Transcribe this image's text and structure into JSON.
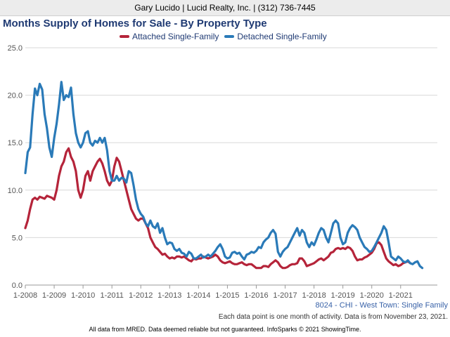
{
  "header": {
    "text": "Gary Lucido | Lucid Realty, Inc. | (312) 736-7445"
  },
  "subtitle": "8024 - CHI - West Town: Single Family",
  "note": "Each data point is one month of activity. Data is from November 23, 2021.",
  "footer": "All data from MRED. Data deemed reliable but not guaranteed. InfoSparks © 2021 ShowingTime.",
  "colors": {
    "attached": "#b5243a",
    "detached": "#2a7ab8",
    "title": "#1f3a73",
    "grid": "#d8d8d8"
  },
  "chart_data": {
    "type": "line",
    "title": "Months Supply of Homes for Sale - By Property Type",
    "xlabel": "",
    "ylabel": "",
    "ylim": [
      0,
      25
    ],
    "yticks": [
      "0.0",
      "5.0",
      "10.0",
      "15.0",
      "20.0",
      "25.0"
    ],
    "xticks": [
      "1-2008",
      "1-2009",
      "1-2010",
      "1-2011",
      "1-2012",
      "1-2013",
      "1-2014",
      "1-2015",
      "1-2016",
      "1-2017",
      "1-2018",
      "1-2019",
      "1-2020",
      "1-2021"
    ],
    "x_start": "1-2008",
    "x_end": "10-2021",
    "grid": "horizontal",
    "legend_position": "top",
    "series": [
      {
        "name": "Attached Single-Family",
        "values": [
          6.0,
          6.8,
          8.0,
          9.0,
          9.2,
          9.0,
          9.3,
          9.2,
          9.1,
          9.4,
          9.3,
          9.2,
          9.0,
          10.0,
          11.5,
          12.5,
          13.0,
          14.0,
          14.4,
          13.5,
          13.0,
          12.0,
          10.0,
          9.2,
          10.0,
          11.5,
          12.0,
          11.0,
          12.0,
          12.5,
          13.0,
          13.3,
          12.8,
          12.0,
          11.0,
          10.5,
          11.0,
          12.5,
          13.4,
          13.0,
          12.0,
          11.0,
          10.0,
          9.0,
          8.0,
          7.5,
          7.0,
          6.8,
          7.0,
          7.0,
          6.5,
          6.0,
          5.0,
          4.5,
          4.0,
          3.8,
          3.5,
          3.2,
          3.3,
          3.0,
          2.8,
          2.9,
          2.8,
          3.0,
          3.0,
          2.9,
          3.0,
          2.8,
          2.6,
          2.5,
          2.8,
          2.7,
          2.8,
          2.8,
          3.0,
          2.9,
          2.8,
          2.9,
          3.0,
          3.2,
          3.0,
          2.6,
          2.4,
          2.3,
          2.4,
          2.5,
          2.3,
          2.2,
          2.2,
          2.3,
          2.4,
          2.2,
          2.1,
          2.2,
          2.2,
          2.0,
          1.8,
          1.8,
          1.8,
          2.0,
          2.0,
          1.9,
          2.2,
          2.4,
          2.6,
          2.4,
          2.0,
          1.8,
          1.8,
          1.9,
          2.1,
          2.2,
          2.2,
          2.3,
          2.8,
          2.8,
          2.5,
          2.0,
          2.1,
          2.2,
          2.3,
          2.5,
          2.7,
          2.8,
          2.6,
          2.8,
          3.0,
          3.4,
          3.5,
          3.8,
          3.9,
          3.8,
          3.9,
          3.8,
          4.0,
          3.9,
          3.6,
          3.0,
          2.6,
          2.7,
          2.7,
          2.9,
          3.0,
          3.2,
          3.4,
          3.8,
          4.4,
          4.5,
          4.2,
          3.5,
          2.8,
          2.5,
          2.3,
          2.1,
          2.2,
          2.0,
          2.1,
          2.3,
          2.4,
          2.5,
          2.3
        ]
      },
      {
        "name": "Detached Single-Family",
        "values": [
          11.8,
          14.0,
          14.5,
          18.0,
          20.7,
          20.0,
          21.2,
          20.6,
          18.0,
          16.5,
          14.5,
          13.5,
          15.5,
          17.0,
          19.0,
          21.4,
          19.5,
          20.0,
          19.8,
          20.8,
          18.0,
          16.0,
          15.0,
          14.5,
          15.0,
          16.0,
          16.2,
          15.0,
          14.7,
          15.2,
          15.0,
          15.5,
          15.0,
          15.5,
          14.2,
          12.0,
          11.0,
          11.0,
          11.5,
          11.0,
          11.3,
          11.2,
          10.8,
          12.0,
          11.8,
          10.5,
          9.0,
          8.0,
          7.5,
          7.2,
          6.5,
          6.2,
          6.8,
          6.2,
          6.0,
          6.5,
          5.5,
          6.0,
          5.0,
          4.3,
          4.5,
          4.4,
          3.8,
          3.6,
          3.8,
          3.4,
          3.3,
          3.0,
          3.5,
          3.3,
          2.8,
          2.8,
          3.0,
          3.2,
          2.9,
          3.0,
          3.2,
          3.0,
          3.3,
          3.6,
          4.0,
          4.3,
          3.8,
          3.0,
          2.8,
          2.9,
          3.4,
          3.5,
          3.3,
          3.4,
          3.0,
          2.7,
          3.2,
          3.3,
          3.5,
          3.4,
          3.6,
          4.0,
          3.9,
          4.5,
          4.8,
          5.0,
          5.5,
          5.8,
          5.4,
          3.5,
          3.0,
          3.5,
          3.8,
          4.0,
          4.5,
          5.0,
          5.5,
          6.0,
          5.2,
          5.8,
          5.5,
          4.5,
          4.0,
          4.5,
          4.2,
          4.8,
          5.5,
          6.0,
          5.8,
          5.0,
          4.5,
          5.5,
          6.5,
          6.8,
          6.5,
          5.0,
          4.3,
          4.5,
          5.5,
          6.0,
          6.3,
          6.1,
          5.8,
          5.0,
          4.5,
          4.0,
          3.8,
          3.5,
          3.6,
          4.0,
          4.5,
          5.0,
          5.5,
          6.2,
          5.8,
          4.5,
          3.0,
          2.8,
          2.6,
          3.0,
          2.8,
          2.5,
          2.4,
          2.6,
          2.3,
          2.2,
          2.4,
          2.5,
          2.0,
          1.8
        ]
      }
    ]
  }
}
